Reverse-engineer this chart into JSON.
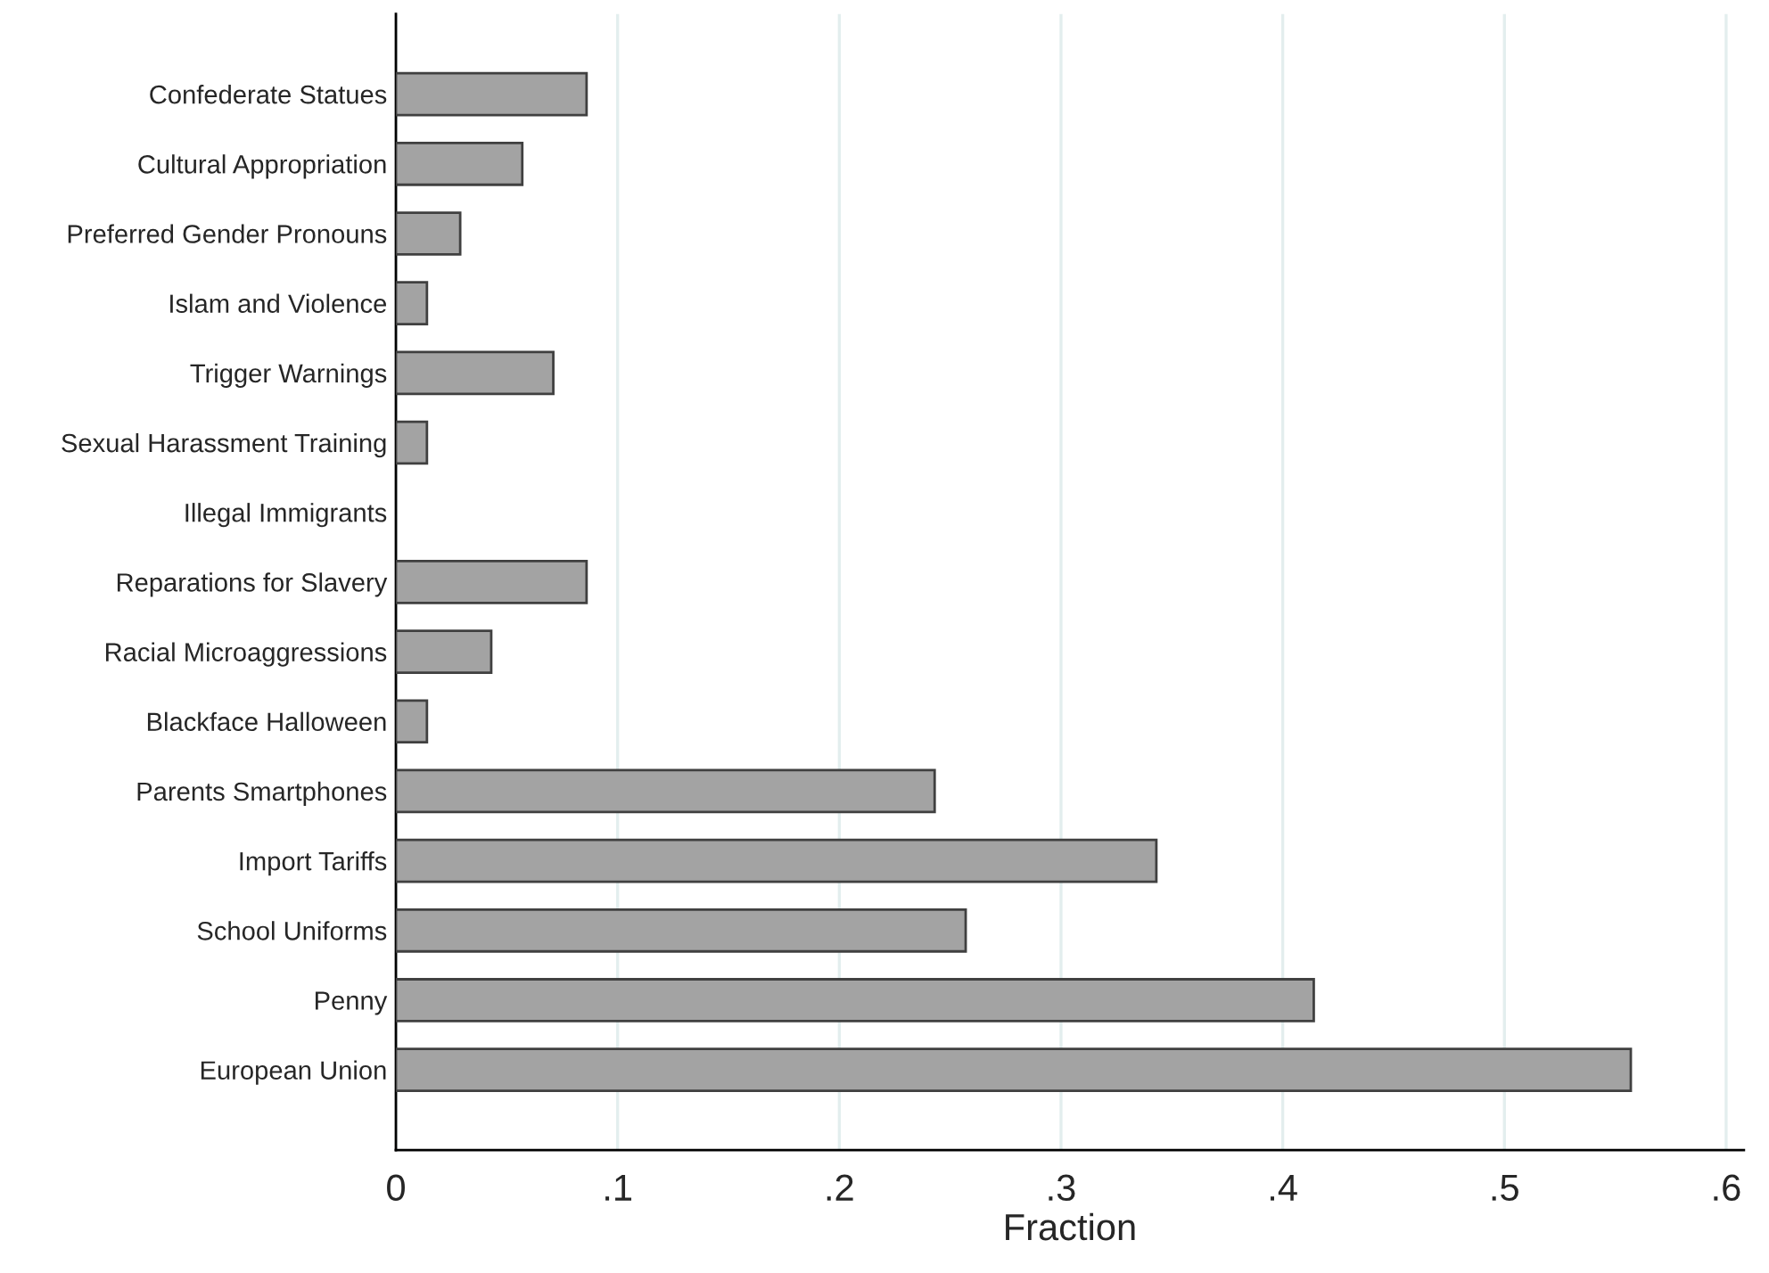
{
  "chart_data": {
    "type": "bar",
    "orientation": "horizontal",
    "xlabel": "Fraction",
    "categories": [
      "Confederate Statues",
      "Cultural Appropriation",
      "Preferred Gender Pronouns",
      "Islam and Violence",
      "Trigger Warnings",
      "Sexual Harassment Training",
      "Illegal Immigrants",
      "Reparations for Slavery",
      "Racial Microaggressions",
      "Blackface Halloween",
      "Parents Smartphones",
      "Import Tariffs",
      "School Uniforms",
      "Penny",
      "European Union"
    ],
    "values": [
      0.086,
      0.057,
      0.029,
      0.014,
      0.071,
      0.014,
      0,
      0.086,
      0.043,
      0.014,
      0.243,
      0.343,
      0.257,
      0.414,
      0.557
    ],
    "color": "#a3a3a3",
    "xlim": [
      0,
      0.608
    ],
    "xticks": [
      0,
      {
        "value": 0.1,
        "label": ".1"
      },
      {
        "value": 0.2,
        "label": ".2"
      },
      {
        "value": 0.3,
        "label": ".3"
      },
      {
        "value": 0.4,
        "label": ".4"
      },
      {
        "value": 0.5,
        "label": ".5"
      },
      {
        "value": 0.6,
        "label": ".6"
      }
    ],
    "grid": "x",
    "legend": false
  }
}
